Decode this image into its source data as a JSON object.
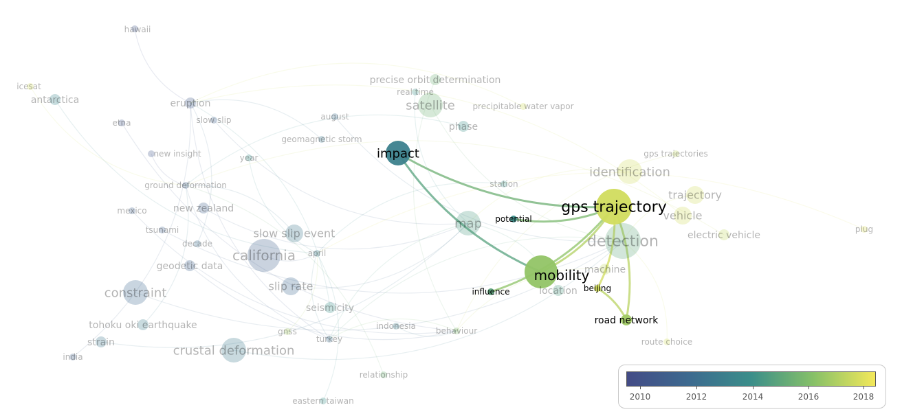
{
  "legend": {
    "ticks": [
      "2010",
      "2012",
      "2014",
      "2016",
      "2018"
    ],
    "color_stops": [
      "#434b86",
      "#3d6a8f",
      "#3b8e8a",
      "#86c068",
      "#f3e85a"
    ]
  },
  "nodes": [
    {
      "id": "hawaii",
      "label": "hawaii",
      "year": 2010.3,
      "weight": 1,
      "faded": true
    },
    {
      "id": "icesat",
      "label": "icesat",
      "year": 2017.8,
      "weight": 1,
      "faded": true
    },
    {
      "id": "antarctica",
      "label": "antarctica",
      "year": 2013.5,
      "weight": 2,
      "faded": true
    },
    {
      "id": "eruption",
      "label": "eruption",
      "year": 2010.6,
      "weight": 2,
      "faded": true
    },
    {
      "id": "etna",
      "label": "etna",
      "year": 2010.4,
      "weight": 1,
      "faded": true
    },
    {
      "id": "slow-slip",
      "label": "slow slip",
      "year": 2011,
      "weight": 1,
      "faded": true
    },
    {
      "id": "august",
      "label": "august",
      "year": 2012,
      "weight": 1,
      "faded": true
    },
    {
      "id": "geomagnetic-storm",
      "label": "geomagnetic storm",
      "year": 2012.5,
      "weight": 1,
      "faded": true
    },
    {
      "id": "new-insight",
      "label": "new insight",
      "year": 2010.3,
      "weight": 1,
      "faded": true
    },
    {
      "id": "year",
      "label": "year",
      "year": 2014,
      "weight": 1,
      "faded": true
    },
    {
      "id": "ground-deformation",
      "label": "ground deformation",
      "year": 2011,
      "weight": 1,
      "faded": true
    },
    {
      "id": "mexico",
      "label": "mexico",
      "year": 2011,
      "weight": 1,
      "faded": true
    },
    {
      "id": "new-zealand",
      "label": "new zealand",
      "year": 2011,
      "weight": 2,
      "faded": true
    },
    {
      "id": "tsunami",
      "label": "tsunami",
      "year": 2011,
      "weight": 1,
      "faded": true
    },
    {
      "id": "decade",
      "label": "decade",
      "year": 2012,
      "weight": 1,
      "faded": true
    },
    {
      "id": "slow-slip-event",
      "label": "slow slip event",
      "year": 2012.5,
      "weight": 3,
      "faded": true
    },
    {
      "id": "california",
      "label": "california",
      "year": 2011,
      "weight": 5,
      "faded": true
    },
    {
      "id": "april",
      "label": "april",
      "year": 2013,
      "weight": 1,
      "faded": true
    },
    {
      "id": "geodetic-data",
      "label": "geodetic data",
      "year": 2011.2,
      "weight": 2,
      "faded": true
    },
    {
      "id": "slip-rate",
      "label": "slip rate",
      "year": 2011.5,
      "weight": 3,
      "faded": true
    },
    {
      "id": "constraint",
      "label": "constraint",
      "year": 2011.5,
      "weight": 4,
      "faded": true
    },
    {
      "id": "seismicity",
      "label": "seismicity",
      "year": 2014,
      "weight": 2,
      "faded": true
    },
    {
      "id": "tohoku-oki-earthquake",
      "label": "tohoku oki earthquake",
      "year": 2013,
      "weight": 2,
      "faded": true
    },
    {
      "id": "gnss",
      "label": "gnss",
      "year": 2017,
      "weight": 1,
      "faded": true
    },
    {
      "id": "turkey",
      "label": "turkey",
      "year": 2012,
      "weight": 1,
      "faded": true
    },
    {
      "id": "indonesia",
      "label": "indonesia",
      "year": 2013,
      "weight": 1,
      "faded": true
    },
    {
      "id": "strain",
      "label": "strain",
      "year": 2012.5,
      "weight": 2,
      "faded": true
    },
    {
      "id": "crustal-deformation",
      "label": "crustal deformation",
      "year": 2012.8,
      "weight": 4,
      "faded": true
    },
    {
      "id": "india",
      "label": "india",
      "year": 2011,
      "weight": 1,
      "faded": true
    },
    {
      "id": "relationship",
      "label": "relationship",
      "year": 2015.5,
      "weight": 1,
      "faded": true
    },
    {
      "id": "eastern-taiwan",
      "label": "eastern taiwan",
      "year": 2014,
      "weight": 1,
      "faded": true
    },
    {
      "id": "behaviour",
      "label": "behaviour",
      "year": 2016,
      "weight": 1,
      "faded": true
    },
    {
      "id": "precise-orbit-determination",
      "label": "precise orbit determination",
      "year": 2015.5,
      "weight": 2,
      "faded": true
    },
    {
      "id": "real-time",
      "label": "real time",
      "year": 2014,
      "weight": 1,
      "faded": true
    },
    {
      "id": "satellite",
      "label": "satellite",
      "year": 2015.5,
      "weight": 4,
      "faded": true
    },
    {
      "id": "precipitable-water-vapor",
      "label": "precipitable water vapor",
      "year": 2017.8,
      "weight": 1,
      "faded": true
    },
    {
      "id": "phase",
      "label": "phase",
      "year": 2014,
      "weight": 2,
      "faded": true
    },
    {
      "id": "impact",
      "label": "impact",
      "year": 2013.2,
      "weight": 4,
      "faded": false
    },
    {
      "id": "station",
      "label": "station",
      "year": 2014,
      "weight": 1,
      "faded": true
    },
    {
      "id": "map",
      "label": "map",
      "year": 2014.5,
      "weight": 4,
      "faded": true
    },
    {
      "id": "potential",
      "label": "potential",
      "year": 2014,
      "weight": 1,
      "faded": false
    },
    {
      "id": "influence",
      "label": "influence",
      "year": 2015,
      "weight": 1,
      "faded": false
    },
    {
      "id": "gps-trajectories",
      "label": "gps trajectories",
      "year": 2017.5,
      "weight": 1,
      "faded": true
    },
    {
      "id": "identification",
      "label": "identification",
      "year": 2017.8,
      "weight": 4,
      "faded": true
    },
    {
      "id": "trajectory",
      "label": "trajectory",
      "year": 2017.8,
      "weight": 3,
      "faded": true
    },
    {
      "id": "gps-trajectory",
      "label": "gps trajectory",
      "year": 2017.8,
      "weight": 6,
      "faded": false
    },
    {
      "id": "vehicle",
      "label": "vehicle",
      "year": 2017.8,
      "weight": 3,
      "faded": true
    },
    {
      "id": "electric-vehicle",
      "label": "electric vehicle",
      "year": 2017.5,
      "weight": 2,
      "faded": true
    },
    {
      "id": "plug",
      "label": "plug",
      "year": 2018,
      "weight": 1,
      "faded": true
    },
    {
      "id": "detection",
      "label": "detection",
      "year": 2015,
      "weight": 6,
      "faded": true
    },
    {
      "id": "machine",
      "label": "machine",
      "year": 2017.5,
      "weight": 2,
      "faded": true
    },
    {
      "id": "location",
      "label": "location",
      "year": 2014.5,
      "weight": 2,
      "faded": true
    },
    {
      "id": "mobility",
      "label": "mobility",
      "year": 2016.5,
      "weight": 5,
      "faded": false
    },
    {
      "id": "beijing",
      "label": "beijing",
      "year": 2017.8,
      "weight": 1,
      "faded": false
    },
    {
      "id": "road-network",
      "label": "road network",
      "year": 2016.8,
      "weight": 2,
      "faded": false
    },
    {
      "id": "route-choice",
      "label": "route choice",
      "year": 2017.8,
      "weight": 1,
      "faded": true
    }
  ],
  "links": [
    [
      "gps-trajectory",
      "impact"
    ],
    [
      "gps-trajectory",
      "potential"
    ],
    [
      "gps-trajectory",
      "influence"
    ],
    [
      "gps-trajectory",
      "mobility"
    ],
    [
      "gps-trajectory",
      "beijing"
    ],
    [
      "gps-trajectory",
      "road-network"
    ],
    [
      "mobility",
      "impact"
    ],
    [
      "beijing",
      "road-network"
    ]
  ]
}
